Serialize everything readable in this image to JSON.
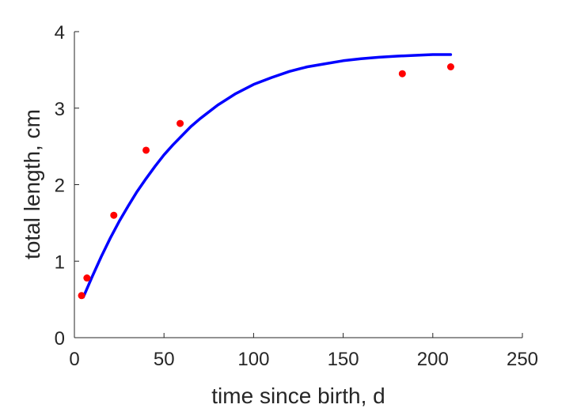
{
  "chart_data": {
    "type": "scatter",
    "title": "",
    "xlabel": "time since birth, d",
    "ylabel": "total length, cm",
    "xlim": [
      0,
      250
    ],
    "ylim": [
      0,
      4
    ],
    "x_ticks": [
      0,
      50,
      100,
      150,
      200,
      250
    ],
    "y_ticks": [
      0,
      1,
      2,
      3,
      4
    ],
    "x_tick_labels": [
      "0",
      "50",
      "100",
      "150",
      "200",
      "250"
    ],
    "y_tick_labels": [
      "0",
      "1",
      "2",
      "3",
      "4"
    ],
    "grid": false,
    "legend": "none",
    "series": [
      {
        "kind": "scatter",
        "color": "#ff0000",
        "x": [
          4,
          7,
          22,
          40,
          59,
          183,
          210
        ],
        "y": [
          0.55,
          0.78,
          1.6,
          2.45,
          2.8,
          3.45,
          3.54
        ]
      },
      {
        "kind": "line",
        "color": "#0000ff",
        "x": [
          5,
          10,
          15,
          20,
          25,
          30,
          35,
          40,
          45,
          50,
          55,
          60,
          65,
          70,
          80,
          90,
          100,
          110,
          120,
          130,
          140,
          150,
          160,
          170,
          180,
          190,
          200,
          210
        ],
        "y": [
          0.53,
          0.8,
          1.06,
          1.3,
          1.52,
          1.72,
          1.91,
          2.08,
          2.24,
          2.39,
          2.52,
          2.64,
          2.76,
          2.86,
          3.04,
          3.19,
          3.31,
          3.4,
          3.48,
          3.54,
          3.58,
          3.62,
          3.645,
          3.665,
          3.68,
          3.69,
          3.7,
          3.7
        ]
      }
    ]
  }
}
